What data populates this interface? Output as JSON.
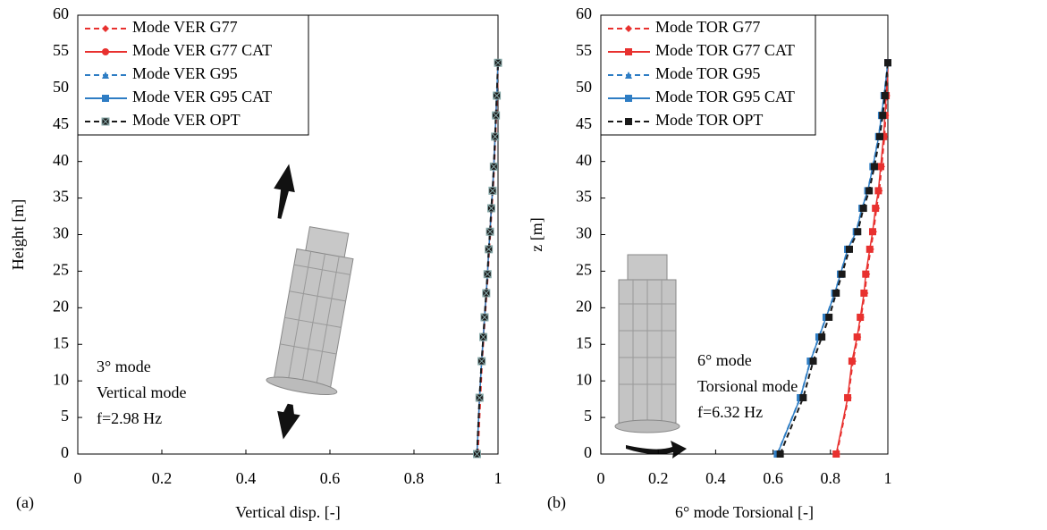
{
  "chart_data": [
    {
      "type": "line",
      "panel_label": "(a)",
      "x_label": "Vertical disp. [-]",
      "y_label": "Height [m]",
      "annotation": [
        "3° mode",
        "Vertical mode",
        "f=2.98 Hz"
      ],
      "xlim": [
        0,
        1
      ],
      "ylim": [
        0,
        60
      ],
      "xticks": [
        0,
        0.2,
        0.4,
        0.6,
        0.8,
        1
      ],
      "yticks": [
        0,
        5,
        10,
        15,
        20,
        25,
        30,
        35,
        40,
        45,
        50,
        55,
        60
      ],
      "y": [
        0,
        7.7,
        12.7,
        16,
        18.7,
        22,
        24.6,
        28,
        30.4,
        33.6,
        36,
        39.3,
        43.4,
        46.3,
        49,
        53.5
      ],
      "series": [
        {
          "name": "Mode VER G77",
          "color": "#e8312f",
          "dash": true,
          "marker": "diamond",
          "values": [
            0.952,
            0.958,
            0.962,
            0.966,
            0.969,
            0.973,
            0.976,
            0.979,
            0.982,
            0.985,
            0.988,
            0.991,
            0.994,
            0.996,
            0.998,
            1
          ]
        },
        {
          "name": "Mode VER G77 CAT",
          "color": "#e8312f",
          "dash": false,
          "marker": "circle",
          "values": [
            0.95,
            0.956,
            0.961,
            0.965,
            0.968,
            0.972,
            0.975,
            0.978,
            0.981,
            0.984,
            0.987,
            0.99,
            0.993,
            0.995,
            0.997,
            1
          ]
        },
        {
          "name": "Mode VER G95",
          "color": "#2e7dc4",
          "dash": true,
          "marker": "triangle",
          "values": [
            0.95,
            0.956,
            0.961,
            0.965,
            0.968,
            0.972,
            0.975,
            0.978,
            0.981,
            0.984,
            0.987,
            0.99,
            0.993,
            0.995,
            0.997,
            1
          ]
        },
        {
          "name": "Mode VER G95 CAT",
          "color": "#2e7dc4",
          "dash": false,
          "marker": "square",
          "values": [
            0.95,
            0.956,
            0.961,
            0.965,
            0.968,
            0.972,
            0.975,
            0.978,
            0.981,
            0.984,
            0.987,
            0.99,
            0.993,
            0.995,
            0.997,
            1
          ]
        },
        {
          "name": "Mode VER OPT",
          "color": "#1a1a1a",
          "dash": true,
          "marker": "xsquare",
          "values": [
            0.95,
            0.956,
            0.961,
            0.965,
            0.968,
            0.972,
            0.975,
            0.978,
            0.981,
            0.984,
            0.987,
            0.99,
            0.993,
            0.995,
            0.997,
            1
          ]
        }
      ]
    },
    {
      "type": "line",
      "panel_label": "(b)",
      "x_label": "6° mode Torsional [-]",
      "y_label": "z [m]",
      "annotation": [
        "6° mode",
        "Torsional mode",
        "f=6.32 Hz"
      ],
      "xlim": [
        0,
        1
      ],
      "ylim": [
        0,
        60
      ],
      "xticks": [
        0,
        0.2,
        0.4,
        0.6,
        0.8,
        1
      ],
      "yticks": [
        0,
        5,
        10,
        15,
        20,
        25,
        30,
        35,
        40,
        45,
        50,
        55,
        60
      ],
      "y": [
        0,
        7.7,
        12.7,
        16,
        18.7,
        22,
        24.6,
        28,
        30.4,
        33.6,
        36,
        39.3,
        43.4,
        46.3,
        49,
        53.5
      ],
      "series": [
        {
          "name": "Mode TOR G77",
          "color": "#e8312f",
          "dash": true,
          "marker": "diamond",
          "values": [
            0.822,
            0.862,
            0.878,
            0.895,
            0.906,
            0.92,
            0.926,
            0.94,
            0.95,
            0.96,
            0.97,
            0.978,
            0.988,
            0.992,
            0.996,
            1
          ]
        },
        {
          "name": "Mode TOR G77 CAT",
          "color": "#e8312f",
          "dash": false,
          "marker": "square",
          "values": [
            0.82,
            0.86,
            0.875,
            0.893,
            0.904,
            0.917,
            0.923,
            0.937,
            0.947,
            0.957,
            0.967,
            0.975,
            0.985,
            0.99,
            0.994,
            1
          ]
        },
        {
          "name": "Mode TOR G95",
          "color": "#2e7dc4",
          "dash": true,
          "marker": "triangle",
          "values": [
            0.615,
            0.695,
            0.73,
            0.76,
            0.785,
            0.815,
            0.835,
            0.86,
            0.89,
            0.91,
            0.93,
            0.948,
            0.968,
            0.978,
            0.987,
            1
          ]
        },
        {
          "name": "Mode TOR G95 CAT",
          "color": "#2e7dc4",
          "dash": false,
          "marker": "square",
          "values": [
            0.615,
            0.695,
            0.73,
            0.76,
            0.785,
            0.815,
            0.835,
            0.86,
            0.89,
            0.91,
            0.93,
            0.948,
            0.968,
            0.978,
            0.987,
            1
          ]
        },
        {
          "name": "Mode TOR OPT",
          "color": "#1a1a1a",
          "dash": true,
          "marker": "square",
          "values": [
            0.625,
            0.705,
            0.74,
            0.77,
            0.795,
            0.82,
            0.84,
            0.866,
            0.895,
            0.915,
            0.935,
            0.953,
            0.972,
            0.982,
            0.99,
            1
          ]
        }
      ]
    }
  ]
}
